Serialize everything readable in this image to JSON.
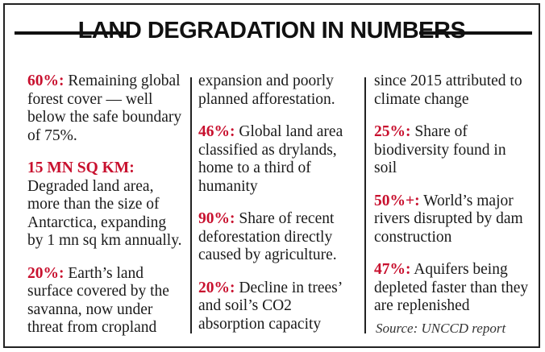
{
  "title": "LAND DEGRADATION IN NUMBERS",
  "col1": [
    {
      "highlight": "60%:",
      "text": " Remaining global forest cover — well below the safe boundary of 75%."
    },
    {
      "highlight": "15 MN SQ KM:",
      "text": " Degraded land area, more than the size of Antarctica, expanding by 1 mn sq km annually."
    },
    {
      "highlight": "20%:",
      "text": " Earth’s land surface covered by the savanna, now under threat from cropland"
    }
  ],
  "col2": [
    {
      "highlight": "",
      "text": "expansion and poorly planned afforestation."
    },
    {
      "highlight": "46%:",
      "text": " Global land area classified as drylands, home to a third of humanity"
    },
    {
      "highlight": "90%:",
      "text": " Share of recent deforestation directly caused by agriculture."
    },
    {
      "highlight": "20%:",
      "text": " Decline in trees’ and soil’s CO2 absorption capacity"
    }
  ],
  "col3": [
    {
      "highlight": "",
      "text": "since 2015 attributed to climate change"
    },
    {
      "highlight": "25%:",
      "text": " Share of biodiversity found in soil"
    },
    {
      "highlight": "50%+:",
      "text": " World’s major rivers disrupted by dam construction"
    },
    {
      "highlight": "47%:",
      "text": " Aquifers being depleted faster than they are replenished"
    }
  ],
  "source": "Source: UNCCD report",
  "colors": {
    "highlight": "#c8102e",
    "text": "#1a1a1a",
    "rules": "#111111"
  }
}
